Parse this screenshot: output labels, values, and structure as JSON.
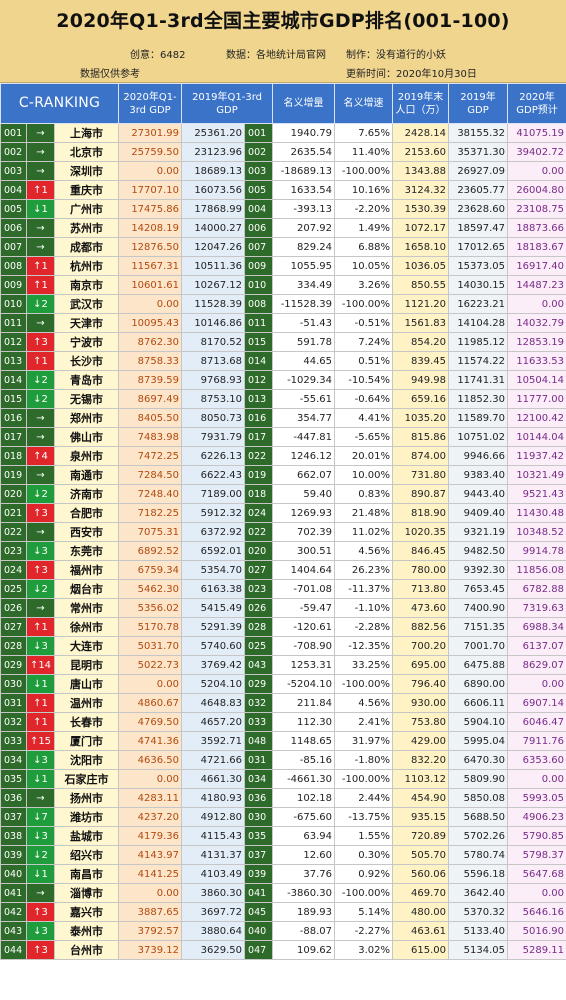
{
  "title": "2020年Q1-3rd全国主要城市GDP排名(001-100)",
  "meta": {
    "creator": "创意：6482",
    "source": "数据：各地统计局官网",
    "maker": "制作：没有道行的小妖",
    "note": "数据仅供参考",
    "update": "更新时间：2020年10月30日"
  },
  "columns": [
    "C-RANKING",
    "2020年Q1-\n3rd GDP",
    "2019年Q1-3rd\nGDP",
    "名义增量",
    "名义增速",
    "2019年末\n人口（万）",
    "2019年\nGDP",
    "2020年\nGDP预计"
  ],
  "rows": [
    {
      "rank": "001",
      "move": "→",
      "dir": "same",
      "city": "上海市",
      "q1": "27301.99",
      "g19": "25361.20",
      "r19": "001",
      "inc": "1940.79",
      "pct": "7.65%",
      "pop": "2428.14",
      "gdp19": "38155.32",
      "pred": "41075.19"
    },
    {
      "rank": "002",
      "move": "→",
      "dir": "same",
      "city": "北京市",
      "q1": "25759.50",
      "g19": "23123.96",
      "r19": "002",
      "inc": "2635.54",
      "pct": "11.40%",
      "pop": "2153.60",
      "gdp19": "35371.30",
      "pred": "39402.72"
    },
    {
      "rank": "003",
      "move": "→",
      "dir": "same",
      "city": "深圳市",
      "q1": "0.00",
      "g19": "18689.13",
      "r19": "003",
      "inc": "-18689.13",
      "pct": "-100.00%",
      "pop": "1343.88",
      "gdp19": "26927.09",
      "pred": "0.00"
    },
    {
      "rank": "004",
      "move": "↑1",
      "dir": "up",
      "city": "重庆市",
      "q1": "17707.10",
      "g19": "16073.56",
      "r19": "005",
      "inc": "1633.54",
      "pct": "10.16%",
      "pop": "3124.32",
      "gdp19": "23605.77",
      "pred": "26004.80"
    },
    {
      "rank": "005",
      "move": "↓1",
      "dir": "down",
      "city": "广州市",
      "q1": "17475.86",
      "g19": "17868.99",
      "r19": "004",
      "inc": "-393.13",
      "pct": "-2.20%",
      "pop": "1530.39",
      "gdp19": "23628.60",
      "pred": "23108.75"
    },
    {
      "rank": "006",
      "move": "→",
      "dir": "same",
      "city": "苏州市",
      "q1": "14208.19",
      "g19": "14000.27",
      "r19": "006",
      "inc": "207.92",
      "pct": "1.49%",
      "pop": "1072.17",
      "gdp19": "18597.47",
      "pred": "18873.66"
    },
    {
      "rank": "007",
      "move": "→",
      "dir": "same",
      "city": "成都市",
      "q1": "12876.50",
      "g19": "12047.26",
      "r19": "007",
      "inc": "829.24",
      "pct": "6.88%",
      "pop": "1658.10",
      "gdp19": "17012.65",
      "pred": "18183.67"
    },
    {
      "rank": "008",
      "move": "↑1",
      "dir": "up",
      "city": "杭州市",
      "q1": "11567.31",
      "g19": "10511.36",
      "r19": "009",
      "inc": "1055.95",
      "pct": "10.05%",
      "pop": "1036.05",
      "gdp19": "15373.05",
      "pred": "16917.40"
    },
    {
      "rank": "009",
      "move": "↑1",
      "dir": "up",
      "city": "南京市",
      "q1": "10601.61",
      "g19": "10267.12",
      "r19": "010",
      "inc": "334.49",
      "pct": "3.26%",
      "pop": "850.55",
      "gdp19": "14030.15",
      "pred": "14487.23"
    },
    {
      "rank": "010",
      "move": "↓2",
      "dir": "down",
      "city": "武汉市",
      "q1": "0.00",
      "g19": "11528.39",
      "r19": "008",
      "inc": "-11528.39",
      "pct": "-100.00%",
      "pop": "1121.20",
      "gdp19": "16223.21",
      "pred": "0.00"
    },
    {
      "rank": "011",
      "move": "→",
      "dir": "same",
      "city": "天津市",
      "q1": "10095.43",
      "g19": "10146.86",
      "r19": "011",
      "inc": "-51.43",
      "pct": "-0.51%",
      "pop": "1561.83",
      "gdp19": "14104.28",
      "pred": "14032.79"
    },
    {
      "rank": "012",
      "move": "↑3",
      "dir": "up",
      "city": "宁波市",
      "q1": "8762.30",
      "g19": "8170.52",
      "r19": "015",
      "inc": "591.78",
      "pct": "7.24%",
      "pop": "854.20",
      "gdp19": "11985.12",
      "pred": "12853.19"
    },
    {
      "rank": "013",
      "move": "↑1",
      "dir": "up",
      "city": "长沙市",
      "q1": "8758.33",
      "g19": "8713.68",
      "r19": "014",
      "inc": "44.65",
      "pct": "0.51%",
      "pop": "839.45",
      "gdp19": "11574.22",
      "pred": "11633.53"
    },
    {
      "rank": "014",
      "move": "↓2",
      "dir": "down",
      "city": "青岛市",
      "q1": "8739.59",
      "g19": "9768.93",
      "r19": "012",
      "inc": "-1029.34",
      "pct": "-10.54%",
      "pop": "949.98",
      "gdp19": "11741.31",
      "pred": "10504.14"
    },
    {
      "rank": "015",
      "move": "↓2",
      "dir": "down",
      "city": "无锡市",
      "q1": "8697.49",
      "g19": "8753.10",
      "r19": "013",
      "inc": "-55.61",
      "pct": "-0.64%",
      "pop": "659.16",
      "gdp19": "11852.30",
      "pred": "11777.00"
    },
    {
      "rank": "016",
      "move": "→",
      "dir": "same",
      "city": "郑州市",
      "q1": "8405.50",
      "g19": "8050.73",
      "r19": "016",
      "inc": "354.77",
      "pct": "4.41%",
      "pop": "1035.20",
      "gdp19": "11589.70",
      "pred": "12100.42"
    },
    {
      "rank": "017",
      "move": "→",
      "dir": "same",
      "city": "佛山市",
      "q1": "7483.98",
      "g19": "7931.79",
      "r19": "017",
      "inc": "-447.81",
      "pct": "-5.65%",
      "pop": "815.86",
      "gdp19": "10751.02",
      "pred": "10144.04"
    },
    {
      "rank": "018",
      "move": "↑4",
      "dir": "up",
      "city": "泉州市",
      "q1": "7472.25",
      "g19": "6226.13",
      "r19": "022",
      "inc": "1246.12",
      "pct": "20.01%",
      "pop": "874.00",
      "gdp19": "9946.66",
      "pred": "11937.42"
    },
    {
      "rank": "019",
      "move": "→",
      "dir": "same",
      "city": "南通市",
      "q1": "7284.50",
      "g19": "6622.43",
      "r19": "019",
      "inc": "662.07",
      "pct": "10.00%",
      "pop": "731.80",
      "gdp19": "9383.40",
      "pred": "10321.49"
    },
    {
      "rank": "020",
      "move": "↓2",
      "dir": "down",
      "city": "济南市",
      "q1": "7248.40",
      "g19": "7189.00",
      "r19": "018",
      "inc": "59.40",
      "pct": "0.83%",
      "pop": "890.87",
      "gdp19": "9443.40",
      "pred": "9521.43"
    },
    {
      "rank": "021",
      "move": "↑3",
      "dir": "up",
      "city": "合肥市",
      "q1": "7182.25",
      "g19": "5912.32",
      "r19": "024",
      "inc": "1269.93",
      "pct": "21.48%",
      "pop": "818.90",
      "gdp19": "9409.40",
      "pred": "11430.48"
    },
    {
      "rank": "022",
      "move": "→",
      "dir": "same",
      "city": "西安市",
      "q1": "7075.31",
      "g19": "6372.92",
      "r19": "022",
      "inc": "702.39",
      "pct": "11.02%",
      "pop": "1020.35",
      "gdp19": "9321.19",
      "pred": "10348.52"
    },
    {
      "rank": "023",
      "move": "↓3",
      "dir": "down",
      "city": "东莞市",
      "q1": "6892.52",
      "g19": "6592.01",
      "r19": "020",
      "inc": "300.51",
      "pct": "4.56%",
      "pop": "846.45",
      "gdp19": "9482.50",
      "pred": "9914.78"
    },
    {
      "rank": "024",
      "move": "↑3",
      "dir": "up",
      "city": "福州市",
      "q1": "6759.34",
      "g19": "5354.70",
      "r19": "027",
      "inc": "1404.64",
      "pct": "26.23%",
      "pop": "780.00",
      "gdp19": "9392.30",
      "pred": "11856.08"
    },
    {
      "rank": "025",
      "move": "↓2",
      "dir": "down",
      "city": "烟台市",
      "q1": "5462.30",
      "g19": "6163.38",
      "r19": "023",
      "inc": "-701.08",
      "pct": "-11.37%",
      "pop": "713.80",
      "gdp19": "7653.45",
      "pred": "6782.88"
    },
    {
      "rank": "026",
      "move": "→",
      "dir": "same",
      "city": "常州市",
      "q1": "5356.02",
      "g19": "5415.49",
      "r19": "026",
      "inc": "-59.47",
      "pct": "-1.10%",
      "pop": "473.60",
      "gdp19": "7400.90",
      "pred": "7319.63"
    },
    {
      "rank": "027",
      "move": "↑1",
      "dir": "up",
      "city": "徐州市",
      "q1": "5170.78",
      "g19": "5291.39",
      "r19": "028",
      "inc": "-120.61",
      "pct": "-2.28%",
      "pop": "882.56",
      "gdp19": "7151.35",
      "pred": "6988.34"
    },
    {
      "rank": "028",
      "move": "↓3",
      "dir": "down",
      "city": "大连市",
      "q1": "5031.70",
      "g19": "5740.60",
      "r19": "025",
      "inc": "-708.90",
      "pct": "-12.35%",
      "pop": "700.20",
      "gdp19": "7001.70",
      "pred": "6137.07"
    },
    {
      "rank": "029",
      "move": "↑14",
      "dir": "up",
      "city": "昆明市",
      "q1": "5022.73",
      "g19": "3769.42",
      "r19": "043",
      "inc": "1253.31",
      "pct": "33.25%",
      "pop": "695.00",
      "gdp19": "6475.88",
      "pred": "8629.07"
    },
    {
      "rank": "030",
      "move": "↓1",
      "dir": "down",
      "city": "唐山市",
      "q1": "0.00",
      "g19": "5204.10",
      "r19": "029",
      "inc": "-5204.10",
      "pct": "-100.00%",
      "pop": "796.40",
      "gdp19": "6890.00",
      "pred": "0.00"
    },
    {
      "rank": "031",
      "move": "↑1",
      "dir": "up",
      "city": "温州市",
      "q1": "4860.67",
      "g19": "4648.83",
      "r19": "032",
      "inc": "211.84",
      "pct": "4.56%",
      "pop": "930.00",
      "gdp19": "6606.11",
      "pred": "6907.14"
    },
    {
      "rank": "032",
      "move": "↑1",
      "dir": "up",
      "city": "长春市",
      "q1": "4769.50",
      "g19": "4657.20",
      "r19": "033",
      "inc": "112.30",
      "pct": "2.41%",
      "pop": "753.80",
      "gdp19": "5904.10",
      "pred": "6046.47"
    },
    {
      "rank": "033",
      "move": "↑15",
      "dir": "up",
      "city": "厦门市",
      "q1": "4741.36",
      "g19": "3592.71",
      "r19": "048",
      "inc": "1148.65",
      "pct": "31.97%",
      "pop": "429.00",
      "gdp19": "5995.04",
      "pred": "7911.76"
    },
    {
      "rank": "034",
      "move": "↓3",
      "dir": "down",
      "city": "沈阳市",
      "q1": "4636.50",
      "g19": "4721.66",
      "r19": "031",
      "inc": "-85.16",
      "pct": "-1.80%",
      "pop": "832.20",
      "gdp19": "6470.30",
      "pred": "6353.60"
    },
    {
      "rank": "035",
      "move": "↓1",
      "dir": "down",
      "city": "石家庄市",
      "q1": "0.00",
      "g19": "4661.30",
      "r19": "034",
      "inc": "-4661.30",
      "pct": "-100.00%",
      "pop": "1103.12",
      "gdp19": "5809.90",
      "pred": "0.00"
    },
    {
      "rank": "036",
      "move": "→",
      "dir": "same",
      "city": "扬州市",
      "q1": "4283.11",
      "g19": "4180.93",
      "r19": "036",
      "inc": "102.18",
      "pct": "2.44%",
      "pop": "454.90",
      "gdp19": "5850.08",
      "pred": "5993.05"
    },
    {
      "rank": "037",
      "move": "↓7",
      "dir": "down",
      "city": "潍坊市",
      "q1": "4237.20",
      "g19": "4912.80",
      "r19": "030",
      "inc": "-675.60",
      "pct": "-13.75%",
      "pop": "935.15",
      "gdp19": "5688.50",
      "pred": "4906.23"
    },
    {
      "rank": "038",
      "move": "↓3",
      "dir": "down",
      "city": "盐城市",
      "q1": "4179.36",
      "g19": "4115.43",
      "r19": "035",
      "inc": "63.94",
      "pct": "1.55%",
      "pop": "720.89",
      "gdp19": "5702.26",
      "pred": "5790.85"
    },
    {
      "rank": "039",
      "move": "↓2",
      "dir": "down",
      "city": "绍兴市",
      "q1": "4143.97",
      "g19": "4131.37",
      "r19": "037",
      "inc": "12.60",
      "pct": "0.30%",
      "pop": "505.70",
      "gdp19": "5780.74",
      "pred": "5798.37"
    },
    {
      "rank": "040",
      "move": "↓1",
      "dir": "down",
      "city": "南昌市",
      "q1": "4141.25",
      "g19": "4103.49",
      "r19": "039",
      "inc": "37.76",
      "pct": "0.92%",
      "pop": "560.06",
      "gdp19": "5596.18",
      "pred": "5647.68"
    },
    {
      "rank": "041",
      "move": "→",
      "dir": "same",
      "city": "淄博市",
      "q1": "0.00",
      "g19": "3860.30",
      "r19": "041",
      "inc": "-3860.30",
      "pct": "-100.00%",
      "pop": "469.70",
      "gdp19": "3642.40",
      "pred": "0.00"
    },
    {
      "rank": "042",
      "move": "↑3",
      "dir": "up",
      "city": "嘉兴市",
      "q1": "3887.65",
      "g19": "3697.72",
      "r19": "045",
      "inc": "189.93",
      "pct": "5.14%",
      "pop": "480.00",
      "gdp19": "5370.32",
      "pred": "5646.16"
    },
    {
      "rank": "043",
      "move": "↓3",
      "dir": "down",
      "city": "泰州市",
      "q1": "3792.57",
      "g19": "3880.64",
      "r19": "040",
      "inc": "-88.07",
      "pct": "-2.27%",
      "pop": "463.61",
      "gdp19": "5133.40",
      "pred": "5016.90"
    },
    {
      "rank": "044",
      "move": "↑3",
      "dir": "up",
      "city": "台州市",
      "q1": "3739.12",
      "g19": "3629.50",
      "r19": "047",
      "inc": "109.62",
      "pct": "3.02%",
      "pop": "615.00",
      "gdp19": "5134.05",
      "pred": "5289.11"
    }
  ]
}
